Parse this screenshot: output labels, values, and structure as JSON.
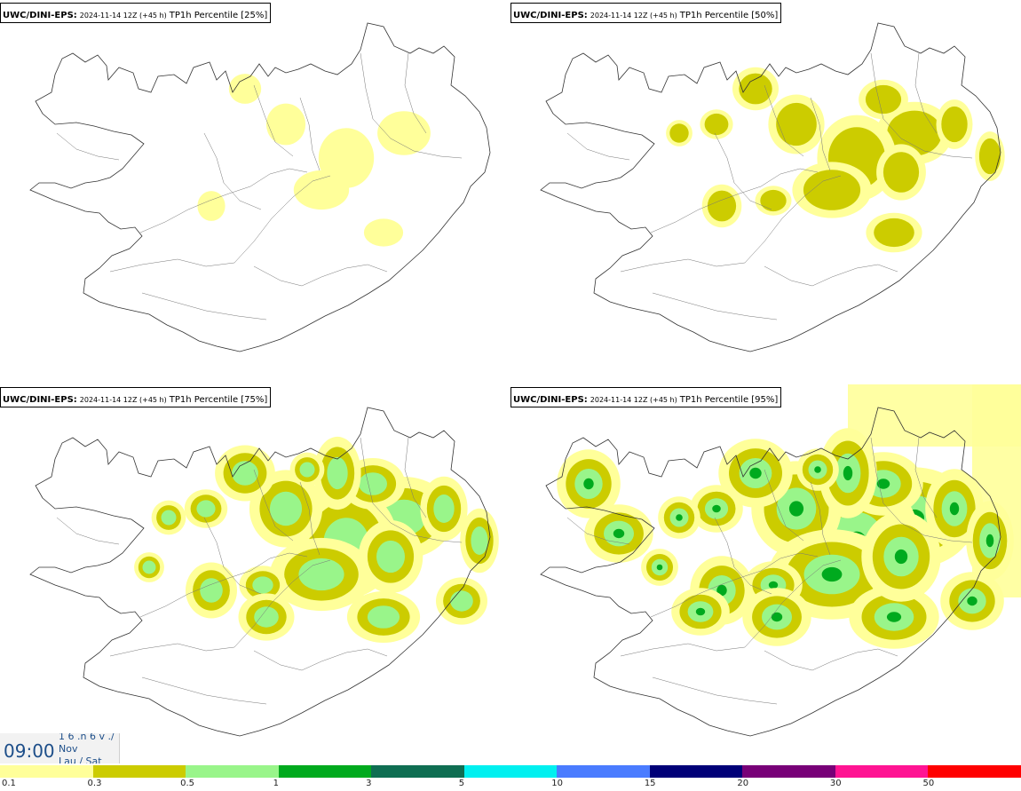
{
  "panels": [
    {
      "model": "UWC/DINI-EPS",
      "date": "2024-11-14 12Z (+45 h)",
      "field": "TP1h Percentile [25%]",
      "level": 0
    },
    {
      "model": "UWC/DINI-EPS",
      "date": "2024-11-14 12Z (+45 h)",
      "field": "TP1h Percentile [50%]",
      "level": 1
    },
    {
      "model": "UWC/DINI-EPS",
      "date": "2024-11-14 12Z (+45 h)",
      "field": "TP1h Percentile [75%]",
      "level": 2
    },
    {
      "model": "UWC/DINI-EPS",
      "date": "2024-11-14 12Z (+45 h)",
      "field": "TP1h Percentile [95%]",
      "level": 3
    }
  ],
  "timebox": {
    "time": "09:00",
    "line1": "1 6 .n 6 v ./",
    "line2": "Nov",
    "line3": "Lau / Sat"
  },
  "legend": {
    "colors": [
      "#ffff9a",
      "#cccc00",
      "#99f58a",
      "#00aa1e",
      "#0f6e52",
      "#00f0f0",
      "#4a7cff",
      "#000078",
      "#780078",
      "#ff1493",
      "#ff0000"
    ],
    "ticks": [
      "0.1",
      "0.3",
      "0.5",
      "1",
      "3",
      "5",
      "10",
      "15",
      "20",
      "30",
      "50"
    ]
  }
}
